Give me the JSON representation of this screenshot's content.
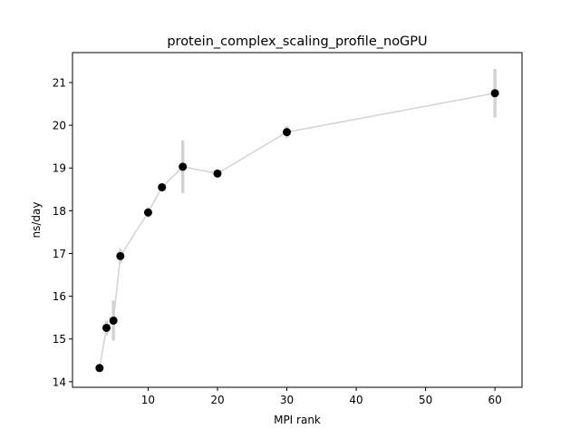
{
  "chart_data": {
    "type": "scatter",
    "title": "protein_complex_scaling_profile_noGPU",
    "xlabel": "MPI rank",
    "ylabel": "ns/day",
    "xlim": [
      -0.9,
      63.9
    ],
    "ylim": [
      13.87,
      21.7
    ],
    "xticks": [
      10,
      20,
      30,
      40,
      50,
      60
    ],
    "yticks": [
      14,
      15,
      16,
      17,
      18,
      19,
      20,
      21
    ],
    "grid": false,
    "legend": "none",
    "series": [
      {
        "x": [
          3,
          4,
          5,
          6,
          10,
          12,
          15,
          20,
          30,
          60
        ],
        "y": [
          14.32,
          15.26,
          15.43,
          16.94,
          17.96,
          18.55,
          19.03,
          18.87,
          19.84,
          20.75
        ],
        "err": [
          0.04,
          0.17,
          0.47,
          0.17,
          0.12,
          0.1,
          0.62,
          0.07,
          0.14,
          0.57
        ]
      }
    ],
    "colors": {
      "line": "#d3d3d3",
      "errorbar": "#d3d3d3",
      "marker": "#000000",
      "axes": "#000000"
    }
  }
}
